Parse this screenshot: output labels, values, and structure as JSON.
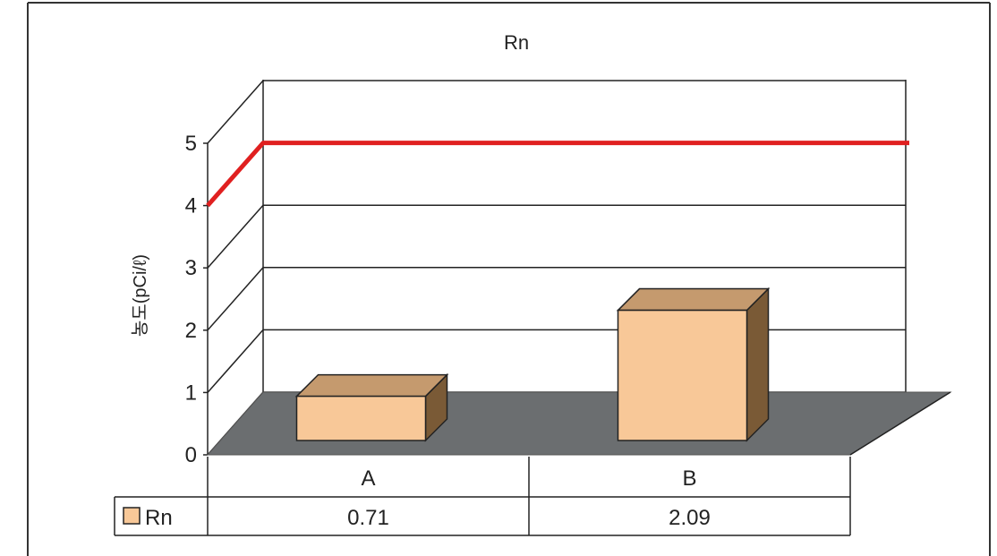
{
  "chart_data": {
    "type": "bar",
    "title": "Rn",
    "ylabel": "농도(pCi/ℓ)",
    "xlabel": "",
    "categories": [
      "A",
      "B"
    ],
    "series": [
      {
        "name": "Rn",
        "values": [
          0.71,
          2.09
        ],
        "value_labels": [
          "0.71",
          "2.09"
        ]
      }
    ],
    "ylim": [
      0,
      5
    ],
    "yticks": [
      "0",
      "1",
      "2",
      "3",
      "4",
      "5"
    ],
    "reference_line": {
      "value": 4
    },
    "grid": true,
    "legend": "bottom-left table",
    "colors": {
      "bar_front": "#f8c898",
      "bar_top": "#c59a6e",
      "bar_side": "#7a5a36",
      "floor": "#6b6e70",
      "reference_line": "#e02020"
    }
  }
}
